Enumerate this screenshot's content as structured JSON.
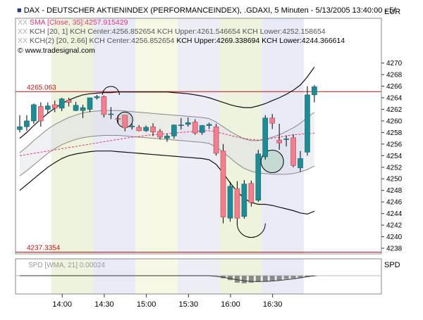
{
  "header": {
    "title": "DAX  - DEUTSCHER AKTIENINDEX (PERFORMANCEINDEX), .GDAXI, 5 Minuten - 5/13/2005 13:40:00 - 5/",
    "currency": "EUR",
    "sma_label": "SMA [Close, 35]:4257.915429",
    "kch1_label": "KCH [20, 1] KCH Center:4256.852654 KCH Upper:4261.546654 KCH Lower:4252.158654",
    "kch2_label_a": "KCH(2) [20, 2.66] KCH Center:4256.852654 ",
    "kch2_label_b": "KCH Upper:4269.338694 KCH Lower:4244.366614",
    "watermark": "www.tradesignal.com",
    "indicator_label": "SPD",
    "indicator_overlay": "SPD [WMA, 21] 0.00024"
  },
  "colors": {
    "candle_up": "#1d8c96",
    "candle_down": "#f08090",
    "sma": "#e8307a",
    "hline": "#cc1111",
    "band_shade": "#d9dbe8"
  },
  "chart_data": {
    "type": "candlestick",
    "x_tick_labels": [
      "14:00",
      "14:30",
      "15:00",
      "15:30",
      "16:00",
      "16:30"
    ],
    "y_range": [
      4236,
      4271
    ],
    "y_ticks": [
      4238,
      4240,
      4242,
      4244,
      4246,
      4248,
      4250,
      4252,
      4254,
      4256,
      4258,
      4260,
      4262,
      4264,
      4266,
      4268,
      4270
    ],
    "hlines": [
      {
        "label": "4265.063",
        "value": 4265.063
      },
      {
        "label": "4237.3354",
        "value": 4237.3354
      }
    ],
    "candles": [
      {
        "o": 4258.5,
        "h": 4261,
        "l": 4258,
        "c": 4259
      },
      {
        "o": 4259,
        "h": 4261,
        "l": 4258.3,
        "c": 4260
      },
      {
        "o": 4260,
        "h": 4263,
        "l": 4259.5,
        "c": 4262.8
      },
      {
        "o": 4262.5,
        "h": 4263.2,
        "l": 4259,
        "c": 4260
      },
      {
        "o": 4262,
        "h": 4263.2,
        "l": 4261.3,
        "c": 4262.6
      },
      {
        "o": 4262.8,
        "h": 4263.5,
        "l": 4261.5,
        "c": 4262.2
      },
      {
        "o": 4262.2,
        "h": 4264,
        "l": 4261.7,
        "c": 4263.8
      },
      {
        "o": 4263.6,
        "h": 4264,
        "l": 4262.5,
        "c": 4263.2
      },
      {
        "o": 4261.8,
        "h": 4263.3,
        "l": 4261.7,
        "c": 4262.7
      },
      {
        "o": 4261.8,
        "h": 4262.8,
        "l": 4260.5,
        "c": 4262.3
      },
      {
        "o": 4262,
        "h": 4264,
        "l": 4261.5,
        "c": 4264
      },
      {
        "o": 4264,
        "h": 4264.5,
        "l": 4263.7,
        "c": 4264.2
      },
      {
        "o": 4264.2,
        "h": 4264.4,
        "l": 4260.6,
        "c": 4261.1
      },
      {
        "o": 4261.1,
        "h": 4262.4,
        "l": 4260.3,
        "c": 4261.2
      },
      {
        "o": 4260.4,
        "h": 4261,
        "l": 4259.5,
        "c": 4260.3
      },
      {
        "o": 4261,
        "h": 4261,
        "l": 4258.2,
        "c": 4258.8
      },
      {
        "o": 4259,
        "h": 4259.6,
        "l": 4258.5,
        "c": 4259.1
      },
      {
        "o": 4258.9,
        "h": 4259.3,
        "l": 4258.2,
        "c": 4258.3
      },
      {
        "o": 4258.3,
        "h": 4259.2,
        "l": 4258.1,
        "c": 4258.9
      },
      {
        "o": 4259,
        "h": 4259.6,
        "l": 4257.4,
        "c": 4258.1
      },
      {
        "o": 4258.2,
        "h": 4258.6,
        "l": 4256.8,
        "c": 4257.2
      },
      {
        "o": 4257,
        "h": 4257.8,
        "l": 4256.4,
        "c": 4257.4
      },
      {
        "o": 4257.4,
        "h": 4259.4,
        "l": 4256.9,
        "c": 4259.3
      },
      {
        "o": 4259.3,
        "h": 4260.5,
        "l": 4258.5,
        "c": 4259.3
      },
      {
        "o": 4259.4,
        "h": 4260.6,
        "l": 4259,
        "c": 4259.7
      },
      {
        "o": 4259.8,
        "h": 4260.3,
        "l": 4257.6,
        "c": 4257.9
      },
      {
        "o": 4258,
        "h": 4259.3,
        "l": 4257.6,
        "c": 4259.2
      },
      {
        "o": 4259.2,
        "h": 4259.7,
        "l": 4258.6,
        "c": 4259.4
      },
      {
        "o": 4259,
        "h": 4259.5,
        "l": 4254,
        "c": 4254.4
      },
      {
        "o": 4254.8,
        "h": 4256,
        "l": 4242.3,
        "c": 4243.4
      },
      {
        "o": 4243.2,
        "h": 4249.5,
        "l": 4242.6,
        "c": 4248.7
      },
      {
        "o": 4248.3,
        "h": 4249.6,
        "l": 4242.1,
        "c": 4243.2
      },
      {
        "o": 4243.5,
        "h": 4249.8,
        "l": 4243.1,
        "c": 4249.1
      },
      {
        "o": 4249.2,
        "h": 4249.7,
        "l": 4245.2,
        "c": 4245.9
      },
      {
        "o": 4246.3,
        "h": 4255,
        "l": 4246,
        "c": 4254.3
      },
      {
        "o": 4253.8,
        "h": 4261,
        "l": 4253.3,
        "c": 4260.5
      },
      {
        "o": 4260.5,
        "h": 4261.2,
        "l": 4258.6,
        "c": 4259.6
      },
      {
        "o": 4256.7,
        "h": 4259.5,
        "l": 4255,
        "c": 4256.2
      },
      {
        "o": 4256.9,
        "h": 4257.5,
        "l": 4255.6,
        "c": 4256.9
      },
      {
        "o": 4257.1,
        "h": 4257.7,
        "l": 4252,
        "c": 4252.3
      },
      {
        "o": 4251.9,
        "h": 4254.8,
        "l": 4251.2,
        "c": 4253.5
      },
      {
        "o": 4254.6,
        "h": 4266,
        "l": 4254,
        "c": 4264.5
      },
      {
        "o": 4264.5,
        "h": 4266.2,
        "l": 4263.2,
        "c": 4265.9
      }
    ],
    "sma": [
      4254.0,
      4254.2,
      4254.4,
      4254.6,
      4254.8,
      4255.0,
      4255.2,
      4255.4,
      4255.6,
      4255.8,
      4256.0,
      4256.2,
      4256.4,
      4256.6,
      4256.8,
      4257.0,
      4257.2,
      4257.3,
      4257.5,
      4257.6,
      4257.7,
      4257.8,
      4257.9,
      4258.0,
      4258.1,
      4258.2,
      4258.3,
      4258.3,
      4258.1,
      4257.8,
      4257.5,
      4257.2,
      4257.0,
      4256.8,
      4256.7,
      4256.8,
      4257.0,
      4257.2,
      4257.4,
      4257.6,
      4257.7,
      4257.8,
      4257.9
    ],
    "kch_upper_outer": [
      4257.0,
      4258.0,
      4259.2,
      4260.3,
      4261.3,
      4262.2,
      4263.0,
      4263.6,
      4264.1,
      4264.5,
      4264.7,
      4264.8,
      4264.9,
      4264.9,
      4265.0,
      4265.0,
      4265.0,
      4265.0,
      4265.0,
      4265.0,
      4265.0,
      4265.0,
      4264.9,
      4264.8,
      4264.7,
      4264.5,
      4264.3,
      4264.0,
      4263.6,
      4263.2,
      4262.8,
      4262.5,
      4262.3,
      4262.3,
      4262.6,
      4263.0,
      4263.5,
      4264.0,
      4264.6,
      4265.3,
      4266.2,
      4267.6,
      4269.3
    ],
    "kch_lower_outer": [
      4248.0,
      4249.0,
      4250.0,
      4251.0,
      4252.0,
      4252.8,
      4253.5,
      4254.0,
      4254.3,
      4254.5,
      4254.7,
      4254.8,
      4254.8,
      4254.8,
      4254.7,
      4254.6,
      4254.5,
      4254.4,
      4254.3,
      4254.2,
      4254.1,
      4254.0,
      4253.9,
      4253.8,
      4253.7,
      4253.6,
      4253.5,
      4253.3,
      4252.5,
      4251.0,
      4249.3,
      4247.8,
      4246.6,
      4245.9,
      4245.6,
      4245.6,
      4245.4,
      4245.1,
      4244.8,
      4244.5,
      4244.1,
      4243.9,
      4244.4
    ],
    "kch_upper_inner": [
      4254.5,
      4255.5,
      4256.6,
      4257.6,
      4258.6,
      4259.4,
      4260.0,
      4260.6,
      4261.0,
      4261.4,
      4261.6,
      4261.7,
      4261.8,
      4261.8,
      4261.8,
      4261.7,
      4261.6,
      4261.5,
      4261.4,
      4261.3,
      4261.2,
      4261.1,
      4261.0,
      4260.9,
      4260.8,
      4260.7,
      4260.6,
      4260.4,
      4259.8,
      4259.0,
      4258.2,
      4257.5,
      4256.9,
      4256.6,
      4256.6,
      4256.8,
      4257.2,
      4257.6,
      4258.2,
      4258.8,
      4259.6,
      4260.6,
      4261.5
    ],
    "kch_lower_inner": [
      4250.5,
      4251.4,
      4252.4,
      4253.4,
      4254.4,
      4255.2,
      4255.9,
      4256.4,
      4256.8,
      4257.1,
      4257.3,
      4257.4,
      4257.5,
      4257.5,
      4257.5,
      4257.4,
      4257.3,
      4257.2,
      4257.1,
      4257.0,
      4256.9,
      4256.8,
      4256.7,
      4256.6,
      4256.5,
      4256.4,
      4256.3,
      4256.1,
      4255.5,
      4254.6,
      4253.6,
      4252.6,
      4251.8,
      4251.3,
      4251.0,
      4250.9,
      4250.8,
      4250.8,
      4250.8,
      4250.9,
      4251.2,
      4251.6,
      4252.2
    ],
    "spd_histogram": [
      0,
      0,
      0,
      0,
      0,
      0,
      0,
      0,
      0,
      0,
      0,
      0,
      0,
      0,
      0,
      0,
      0,
      0,
      0,
      0,
      0,
      0,
      0,
      0,
      0,
      0,
      0,
      0,
      0,
      -0.2,
      -0.35,
      -0.55,
      -0.6,
      -0.55,
      -0.5,
      -0.45,
      -0.4,
      -0.35,
      -0.25,
      -0.2,
      -0.15,
      -0.1,
      -0.05
    ],
    "spd_wma": [
      0,
      0,
      0,
      0,
      0,
      0,
      0,
      0,
      0,
      0,
      0,
      0,
      0,
      0,
      0,
      0,
      0,
      0,
      0,
      0,
      0,
      0,
      0,
      0,
      0,
      0,
      0,
      0,
      -0.05,
      -0.12,
      -0.22,
      -0.32,
      -0.4,
      -0.45,
      -0.46,
      -0.45,
      -0.42,
      -0.37,
      -0.31,
      -0.25,
      -0.17,
      -0.08,
      0.0
    ],
    "shade_bands": [
      {
        "from": 0,
        "to": 5,
        "color": "#ffffff"
      },
      {
        "from": 5,
        "to": 11,
        "color": "#eef3dd"
      },
      {
        "from": 11,
        "to": 17,
        "color": "#e8ebf6"
      },
      {
        "from": 17,
        "to": 23,
        "color": "#f7f7e6"
      },
      {
        "from": 23,
        "to": 29,
        "color": "#ededf6"
      },
      {
        "from": 29,
        "to": 35,
        "color": "#eef3dd"
      },
      {
        "from": 35,
        "to": 41,
        "color": "#e8ebf6"
      },
      {
        "from": 41,
        "to": 43,
        "color": "#ffffff"
      }
    ],
    "circles": [
      {
        "bar": 13,
        "value": 4264.5,
        "r": 12
      },
      {
        "bar": 15,
        "value": 4260.2,
        "r": 11
      },
      {
        "bar": 36,
        "value": 4253.0,
        "r": 16
      },
      {
        "bar": 33,
        "value": 4242.3,
        "r": 20
      }
    ]
  }
}
